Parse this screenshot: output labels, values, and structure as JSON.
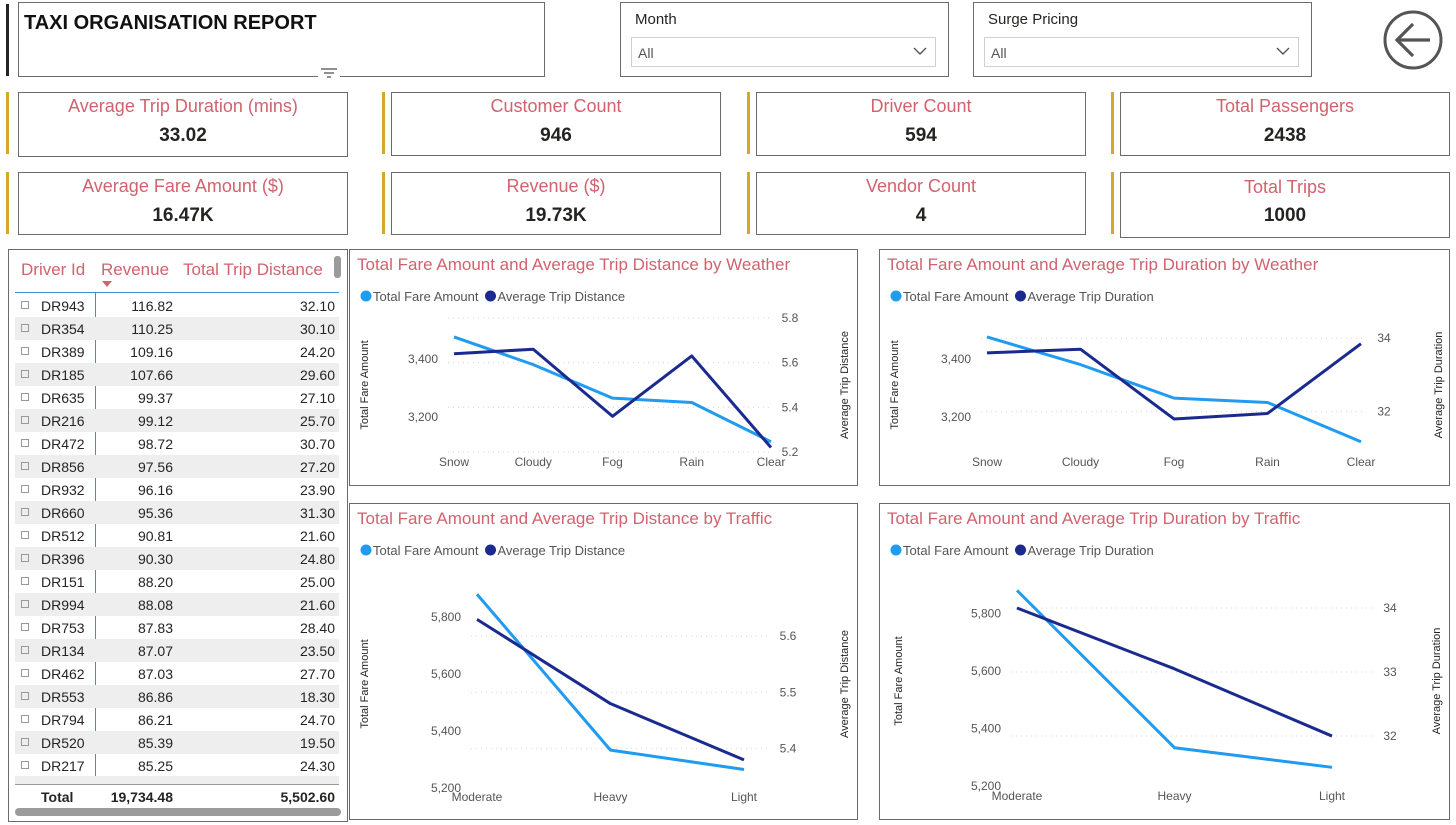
{
  "header": {
    "title": "TAXI ORGANISATION REPORT"
  },
  "slicers": {
    "month": {
      "label": "Month",
      "value": "All"
    },
    "surge": {
      "label": "Surge Pricing",
      "value": "All"
    }
  },
  "kpis": [
    {
      "label": "Average Trip Duration (mins)",
      "value": "33.02"
    },
    {
      "label": "Customer Count",
      "value": "946"
    },
    {
      "label": "Driver Count",
      "value": "594"
    },
    {
      "label": "Total Passengers",
      "value": "2438"
    },
    {
      "label": "Average Fare Amount ($)",
      "value": "16.47K"
    },
    {
      "label": "Revenue ($)",
      "value": "19.73K"
    },
    {
      "label": "Vendor Count",
      "value": "4"
    },
    {
      "label": "Total Trips",
      "value": "1000"
    }
  ],
  "table": {
    "headers": [
      "Driver Id",
      "Revenue",
      "Total Trip Distance"
    ],
    "rows": [
      [
        "DR943",
        "116.82",
        "32.10"
      ],
      [
        "DR354",
        "110.25",
        "30.10"
      ],
      [
        "DR389",
        "109.16",
        "24.20"
      ],
      [
        "DR185",
        "107.66",
        "29.60"
      ],
      [
        "DR635",
        "99.37",
        "27.10"
      ],
      [
        "DR216",
        "99.12",
        "25.70"
      ],
      [
        "DR472",
        "98.72",
        "30.70"
      ],
      [
        "DR856",
        "97.56",
        "27.20"
      ],
      [
        "DR932",
        "96.16",
        "23.90"
      ],
      [
        "DR660",
        "95.36",
        "31.30"
      ],
      [
        "DR512",
        "90.81",
        "21.60"
      ],
      [
        "DR396",
        "90.30",
        "24.80"
      ],
      [
        "DR151",
        "88.20",
        "25.00"
      ],
      [
        "DR994",
        "88.08",
        "21.60"
      ],
      [
        "DR753",
        "87.83",
        "28.40"
      ],
      [
        "DR134",
        "87.07",
        "23.50"
      ],
      [
        "DR462",
        "87.03",
        "27.70"
      ],
      [
        "DR553",
        "86.86",
        "18.30"
      ],
      [
        "DR794",
        "86.21",
        "24.70"
      ],
      [
        "DR520",
        "85.39",
        "19.50"
      ],
      [
        "DR217",
        "85.25",
        "24.30"
      ]
    ],
    "total": {
      "label": "Total",
      "revenue": "19,734.48",
      "distance": "5,502.60"
    }
  },
  "colors": {
    "light": "#1f9bf0",
    "dark": "#1b2a8f",
    "accent": "#d1626e",
    "kpi_bar": "#d4a82a"
  },
  "chart_data": [
    {
      "type": "line",
      "title": "Total Fare Amount and Average Trip Distance by Weather",
      "categories": [
        "Snow",
        "Cloudy",
        "Fog",
        "Rain",
        "Clear"
      ],
      "series": [
        {
          "name": "Total Fare Amount",
          "axis": "left",
          "values": [
            3475,
            3380,
            3265,
            3250,
            3115
          ]
        },
        {
          "name": "Average Trip Distance",
          "axis": "right",
          "values": [
            5.64,
            5.66,
            5.36,
            5.63,
            5.22
          ]
        }
      ],
      "ylabel": "Total Fare Amount",
      "y2label": "Average Trip Distance",
      "yticks": [
        3200,
        3400
      ],
      "ylim": [
        3080,
        3540
      ],
      "y2ticks": [
        5.2,
        5.4,
        5.6,
        5.8
      ],
      "y2lim": [
        5.2,
        5.8
      ]
    },
    {
      "type": "line",
      "title": "Total Fare Amount and Average Trip Duration by Weather",
      "categories": [
        "Snow",
        "Cloudy",
        "Fog",
        "Rain",
        "Clear"
      ],
      "series": [
        {
          "name": "Total Fare Amount",
          "axis": "left",
          "values": [
            3475,
            3380,
            3265,
            3250,
            3115
          ]
        },
        {
          "name": "Average Trip Duration",
          "axis": "right",
          "values": [
            33.6,
            33.7,
            31.8,
            31.95,
            33.85
          ]
        }
      ],
      "ylabel": "Total Fare Amount",
      "y2label": "Average Trip Duration",
      "yticks": [
        3200,
        3400
      ],
      "ylim": [
        3080,
        3540
      ],
      "y2ticks": [
        32,
        34
      ],
      "y2lim": [
        30.9,
        34.55
      ]
    },
    {
      "type": "line",
      "title": "Total Fare Amount and Average Trip Distance by Traffic",
      "categories": [
        "Moderate",
        "Heavy",
        "Light"
      ],
      "series": [
        {
          "name": "Total Fare Amount",
          "axis": "left",
          "values": [
            5880,
            5333,
            5265
          ]
        },
        {
          "name": "Average Trip Distance",
          "axis": "right",
          "values": [
            5.63,
            5.48,
            5.38
          ]
        }
      ],
      "ylabel": "Total Fare Amount",
      "y2label": "Average Trip Distance",
      "yticks": [
        5200,
        5400,
        5600,
        5800
      ],
      "ylim": [
        5200,
        5930
      ],
      "y2ticks": [
        5.4,
        5.5,
        5.6
      ],
      "y2lim": [
        5.33,
        5.7
      ]
    },
    {
      "type": "line",
      "title": "Total Fare Amount and Average Trip Duration by Traffic",
      "categories": [
        "Moderate",
        "Heavy",
        "Light"
      ],
      "series": [
        {
          "name": "Total Fare Amount",
          "axis": "left",
          "values": [
            5880,
            5333,
            5265
          ]
        },
        {
          "name": "Average Trip Duration",
          "axis": "right",
          "values": [
            34.0,
            33.05,
            32.0
          ]
        }
      ],
      "ylabel": "Total Fare Amount",
      "y2label": "Average Trip Duration",
      "yticks": [
        5200,
        5400,
        5600,
        5800
      ],
      "ylim": [
        5200,
        5930
      ],
      "y2ticks": [
        32,
        33,
        34
      ],
      "y2lim": [
        31.22,
        34.5
      ]
    }
  ]
}
